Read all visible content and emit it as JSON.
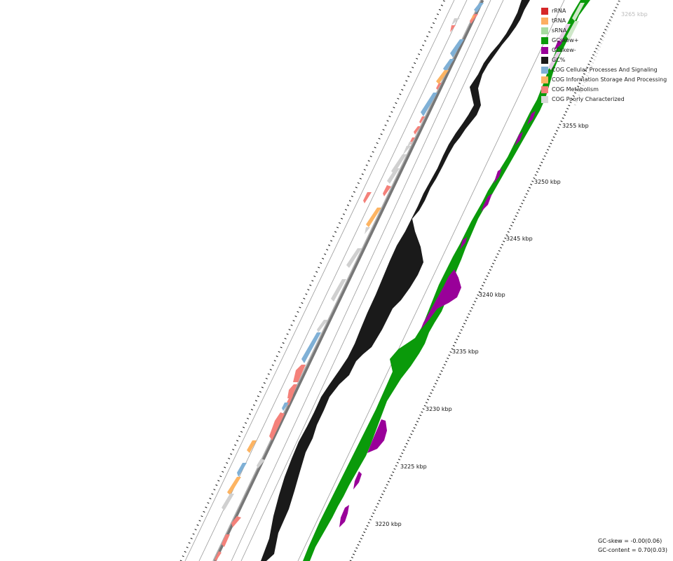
{
  "legend": {
    "items": [
      {
        "label": "rRNA",
        "color": "#d62728",
        "icon": "rrna-swatch"
      },
      {
        "label": "tRNA",
        "color": "#fdae61",
        "icon": "trna-swatch"
      },
      {
        "label": "sRNA",
        "color": "#a6dba0",
        "icon": "srna-swatch"
      },
      {
        "label": "GCskew+",
        "color": "#0a9a0a",
        "icon": "gcskew-plus-swatch"
      },
      {
        "label": "GCskew-",
        "color": "#990099",
        "icon": "gcskew-minus-swatch"
      },
      {
        "label": "GC%",
        "color": "#1a1a1a",
        "icon": "gc-content-swatch"
      },
      {
        "label": "COG Cellular Processes And Signaling",
        "color": "#7fb0d6",
        "icon": "cog-cellular-swatch"
      },
      {
        "label": "COG Information Storage And Processing",
        "color": "#fdb462",
        "icon": "cog-information-swatch"
      },
      {
        "label": "COG Metabolism",
        "color": "#f4817a",
        "icon": "cog-metabolism-swatch"
      },
      {
        "label": "COG Poorly Characterized",
        "color": "#d9d9d9",
        "icon": "cog-poorly-swatch"
      }
    ]
  },
  "ruler": {
    "labels": [
      "3220 kbp",
      "3225 kbp",
      "3230 kbp",
      "3235 kbp",
      "3240 kbp",
      "3245 kbp",
      "3250 kbp",
      "3255 kbp",
      "3265 kbp"
    ]
  },
  "stats": {
    "gc_skew": "GC-skew = -0.00(0.06)",
    "gc_content": "GC-content = 0.70(0.03)"
  }
}
